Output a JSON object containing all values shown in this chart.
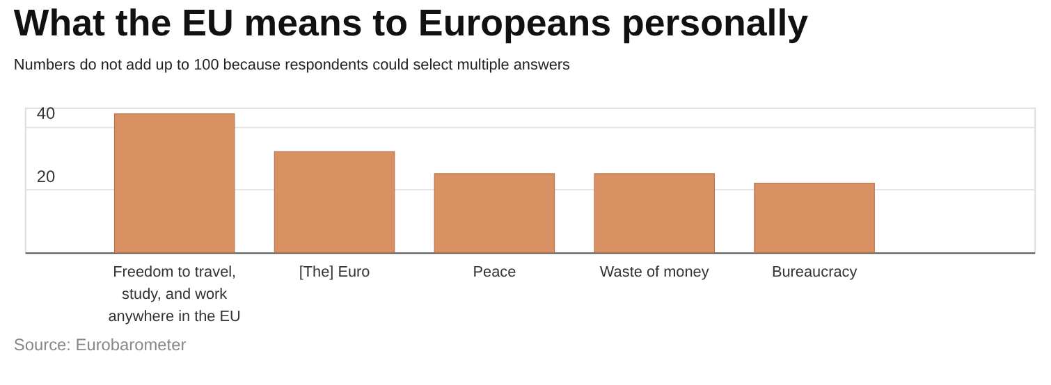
{
  "chart_data": {
    "type": "bar",
    "title": "What the EU means to Europeans personally",
    "subtitle": "Numbers do not add up to 100 because respondents could select multiple answers",
    "categories": [
      "Freedom to travel, study, and work anywhere in the EU",
      "[The] Euro",
      "Peace",
      "Waste of money",
      "Bureaucracy"
    ],
    "values": [
      44,
      32,
      25,
      25,
      22
    ],
    "color": "#d99063",
    "ylim": [
      0,
      46
    ],
    "yticks": [
      20,
      40
    ],
    "grid": "y",
    "annotations": [
      "Source: Eurobarometer"
    ]
  }
}
